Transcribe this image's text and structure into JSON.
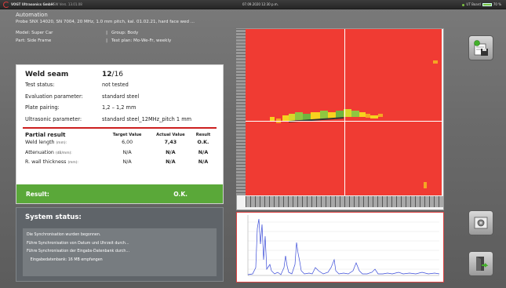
{
  "topbar": {
    "company": "VOGT Ultrasonics GmbH",
    "software": "SW Vers. 13.01.08",
    "datetime": "07.09.2020  12:30 p.m.",
    "board": "UT Board",
    "battery": "70 %"
  },
  "header": {
    "mode": "Automation",
    "probe": "Probe SNX 14020, SN 7004, 20 MHz, 1.0 mm pitch, kal. 01.02.21, hard face wed ...",
    "model": "Model: Super Car",
    "group": "Group: Body",
    "part": "Part: Side Frame",
    "testplan": "Test plan: Mo-We-Fr, weekly",
    "separator": "|"
  },
  "weld": {
    "title_label": "Weld seam",
    "seam_current": "12",
    "seam_total": "/16",
    "rows": [
      {
        "label": "Test status:",
        "value": "not tested"
      },
      {
        "label": "Evaluation parameter:",
        "value": "standard steel"
      },
      {
        "label": "Plate pairing:",
        "value": "1,2 – 1,2 mm"
      },
      {
        "label": "Ultrasonic parameter:",
        "value": "standard steel_12MHz_pitch 1 mm"
      }
    ],
    "partial": {
      "title": "Partial result",
      "headers": [
        "Target Value",
        "Actual Value",
        "Result"
      ],
      "rows": [
        {
          "label": "Weld length",
          "unit": "(mm):",
          "target": "6,00",
          "actual": "7,43",
          "result": "O.K."
        },
        {
          "label": "Attenuation",
          "unit": "(dB/mm):",
          "target": "N/A",
          "actual": "N/A",
          "result": "N/A"
        },
        {
          "label": "R. wall thickness",
          "unit": "(mm):",
          "target": "N/A",
          "actual": "N/A",
          "result": "N/A"
        }
      ]
    },
    "result_label": "Result:",
    "result_value": "O.K."
  },
  "system_status": {
    "title": "System status:",
    "messages": [
      "Die Synchronisation wurden begonnen.",
      "Führe Synchronisation von Datum und Uhrzeit durch...",
      "Führe Synchronisation der Eingabs-Datenbank durch...",
      "   Eingabedatenbank: 16 MB empfangen"
    ]
  },
  "colors": {
    "accent_green": "#5aa839",
    "scan_red": "#f03b33",
    "divider_red": "#cc1f1f",
    "ascan_line": "#3a4bd8"
  },
  "icons": {
    "save": "save-report-icon",
    "settings": "camera-settings-icon",
    "exit": "exit-door-icon"
  }
}
